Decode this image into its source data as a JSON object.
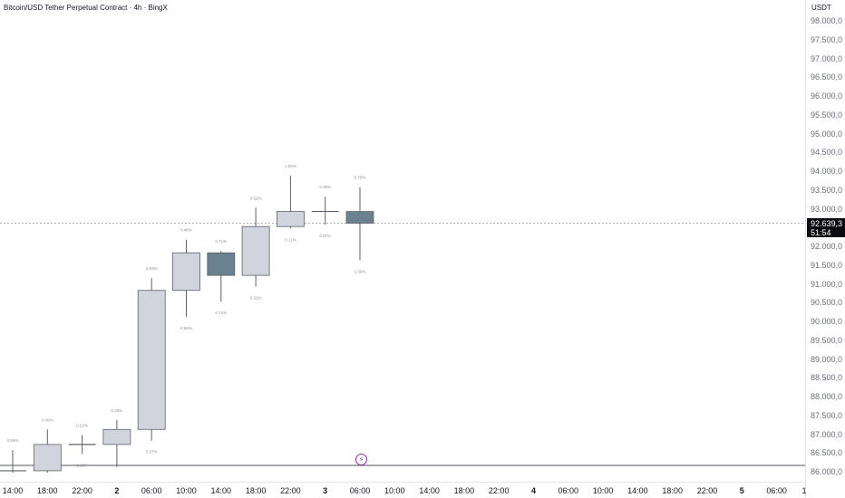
{
  "header": {
    "title": "Bitcoin/USD Tether Perpetual Contract · 4h · BingX"
  },
  "price_axis": {
    "currency": "USDT",
    "labels": [
      "98.000,0",
      "97.500,0",
      "97.000,0",
      "96.500,0",
      "96.000,0",
      "95.500,0",
      "95.000,0",
      "94.500,0",
      "94.000,0",
      "93.500,0",
      "93.000,0",
      "92.500,0",
      "92.000,0",
      "91.500,0",
      "91.000,0",
      "90.500,0",
      "90.000,0",
      "89.500,0",
      "89.000,0",
      "88.500,0",
      "88.000,0",
      "87.500,0",
      "87.000,0",
      "86.500,0",
      "86.000,0"
    ],
    "last_price": "92.639,3",
    "countdown": "51:54"
  },
  "time_axis": {
    "labels": [
      {
        "text": "14:00"
      },
      {
        "text": "18:00"
      },
      {
        "text": "22:00"
      },
      {
        "text": "2",
        "day": true
      },
      {
        "text": "06:00"
      },
      {
        "text": "10:00"
      },
      {
        "text": "14:00"
      },
      {
        "text": "18:00"
      },
      {
        "text": "22:00"
      },
      {
        "text": "3",
        "day": true
      },
      {
        "text": "06:00"
      },
      {
        "text": "10:00"
      },
      {
        "text": "14:00"
      },
      {
        "text": "18:00"
      },
      {
        "text": "22:00"
      },
      {
        "text": "4",
        "day": true
      },
      {
        "text": "06:00"
      },
      {
        "text": "10:00"
      },
      {
        "text": "14:00"
      },
      {
        "text": "18:00"
      },
      {
        "text": "22:00"
      },
      {
        "text": "5",
        "day": true
      },
      {
        "text": "06:00"
      },
      {
        "text": "1"
      }
    ]
  },
  "events": {
    "badge_icon": "lightning-icon",
    "badge_glyph": "⚡"
  },
  "colors": {
    "bull": "#d1d4dc",
    "bear": "#6a818f",
    "outline": "#5d606b",
    "label": "#8a8d96"
  },
  "chart_data": {
    "type": "candlestick",
    "title": "Bitcoin/USD Tether Perpetual Contract · 4h · BingX",
    "ylabel": "USDT",
    "ylim": [
      86000,
      98250
    ],
    "candles": [
      {
        "time": "14:00",
        "open": 86050,
        "high": 86600,
        "low": 86000,
        "close": 86050,
        "label_above": "0.66%"
      },
      {
        "time": "18:00",
        "open": 86050,
        "high": 87150,
        "low": 86000,
        "close": 86750,
        "label_above": "0.45%"
      },
      {
        "time": "22:00",
        "open": 86750,
        "high": 87000,
        "low": 86500,
        "close": 86750,
        "label_above": "0.22%",
        "label_below": "0.18%"
      },
      {
        "time": "2 02:00",
        "open": 86750,
        "high": 87400,
        "low": 86150,
        "close": 87150,
        "label_above": "0.26%"
      },
      {
        "time": "06:00",
        "open": 87150,
        "high": 91180,
        "low": 86850,
        "close": 90850,
        "label_above": "3.93%",
        "label_below": "0.37%"
      },
      {
        "time": "10:00",
        "open": 90850,
        "high": 92200,
        "low": 90150,
        "close": 91850,
        "label_above": "0.46%",
        "label_below": "0.69%"
      },
      {
        "time": "14:00",
        "open": 91850,
        "high": 91900,
        "low": 90550,
        "close": 91250,
        "label_above": "0.71%",
        "label_below": "0.71%"
      },
      {
        "time": "18:00",
        "open": 91250,
        "high": 93050,
        "low": 90950,
        "close": 92550,
        "label_above": "0.51%",
        "label_below": "0.31%"
      },
      {
        "time": "22:00",
        "open": 92550,
        "high": 93900,
        "low": 92500,
        "close": 92950,
        "label_above": "1.05%",
        "label_below": "0.11%"
      },
      {
        "time": "3 02:00",
        "open": 92950,
        "high": 93350,
        "low": 92600,
        "close": 92950,
        "label_above": "0.39%",
        "label_below": "0.07%"
      },
      {
        "time": "06:00",
        "open": 92950,
        "high": 93600,
        "low": 91650,
        "close": 92639.3,
        "label_above": "0.75%",
        "label_below": "1.06%"
      }
    ],
    "last_price": 92639.3
  }
}
